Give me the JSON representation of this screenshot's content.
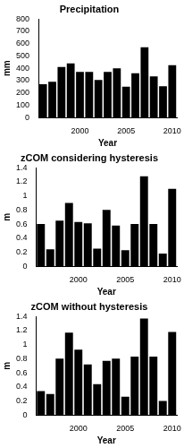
{
  "chart_data": [
    {
      "type": "bar",
      "title": "Precipitation",
      "x_label": "Year",
      "y_label": "mm",
      "categories": [
        null,
        null,
        null,
        null,
        "2000",
        null,
        null,
        null,
        null,
        "2005",
        null,
        null,
        null,
        null,
        "2010"
      ],
      "values": [
        270,
        290,
        410,
        440,
        370,
        370,
        305,
        370,
        400,
        250,
        360,
        570,
        335,
        255,
        425
      ],
      "color": "#000000",
      "ylim": [
        0,
        800
      ],
      "yticks": [
        0,
        100,
        200,
        300,
        400,
        500,
        600,
        700,
        800
      ],
      "grid": false
    },
    {
      "type": "bar",
      "title": "zCOM considering hysteresis",
      "x_label": "Year",
      "y_label": "m",
      "categories": [
        null,
        null,
        null,
        null,
        "2000",
        null,
        null,
        null,
        null,
        "2005",
        null,
        null,
        null,
        null,
        "2010"
      ],
      "values": [
        0.6,
        0.24,
        0.65,
        0.9,
        0.63,
        0.61,
        0.25,
        0.8,
        0.58,
        0.23,
        0.6,
        1.28,
        0.6,
        0.18,
        1.1
      ],
      "color": "#000000",
      "ylim": [
        0,
        1.4
      ],
      "yticks": [
        0,
        0.2,
        0.4,
        0.6,
        0.8,
        1,
        1.2,
        1.4
      ],
      "grid": false
    },
    {
      "type": "bar",
      "title": "zCOM without hysteresis",
      "x_label": "Year",
      "y_label": "m",
      "categories": [
        null,
        null,
        null,
        null,
        "2000",
        null,
        null,
        null,
        null,
        "2005",
        null,
        null,
        null,
        null,
        "2010"
      ],
      "values": [
        0.34,
        0.3,
        0.8,
        1.17,
        0.93,
        0.72,
        0.44,
        0.77,
        0.8,
        0.26,
        0.83,
        1.37,
        0.83,
        0.2,
        1.18
      ],
      "color": "#000000",
      "ylim": [
        0,
        1.4
      ],
      "yticks": [
        0,
        0.2,
        0.4,
        0.6,
        0.8,
        1,
        1.2,
        1.4
      ],
      "grid": false
    }
  ]
}
